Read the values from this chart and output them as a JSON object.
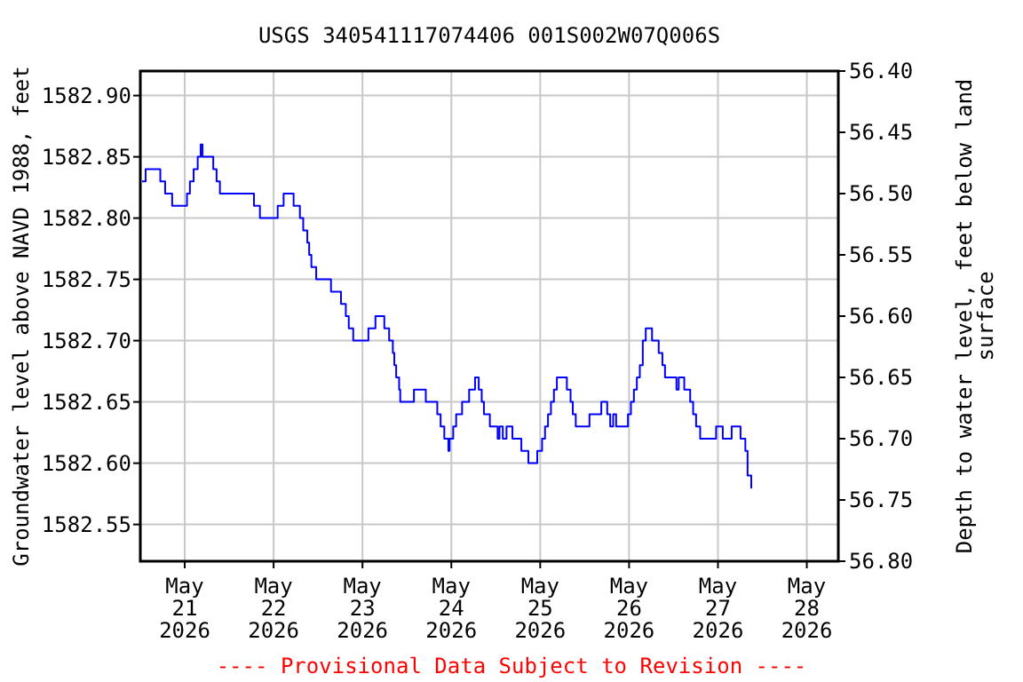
{
  "chart_data": {
    "type": "step",
    "title": "USGS 340541117074406 001S002W07Q006S",
    "xlabel": null,
    "ylabel": "Groundwater level above NAVD 1988, feet",
    "y2label": "Depth to water level, feet below land surface",
    "annotations": [
      "---- Provisional Data Subject to Revision ----"
    ],
    "grid": true,
    "marker": "none",
    "line_style": "solid",
    "xlim": [
      "2026-05-20T12:00",
      "2026-05-28T08:30"
    ],
    "xticks": [
      {
        "value": "2026-05-21",
        "label": "May\n21\n2026"
      },
      {
        "value": "2026-05-22",
        "label": "May\n22\n2026"
      },
      {
        "value": "2026-05-23",
        "label": "May\n23\n2026"
      },
      {
        "value": "2026-05-24",
        "label": "May\n24\n2026"
      },
      {
        "value": "2026-05-25",
        "label": "May\n25\n2026"
      },
      {
        "value": "2026-05-26",
        "label": "May\n26\n2026"
      },
      {
        "value": "2026-05-27",
        "label": "May\n27\n2026"
      },
      {
        "value": "2026-05-28",
        "label": "May\n28\n2026"
      }
    ],
    "ylim": [
      1582.52,
      1582.92
    ],
    "yticks": [
      {
        "value": 1582.55,
        "label": "1582.55"
      },
      {
        "value": 1582.6,
        "label": "1582.60"
      },
      {
        "value": 1582.65,
        "label": "1582.65"
      },
      {
        "value": 1582.7,
        "label": "1582.70"
      },
      {
        "value": 1582.75,
        "label": "1582.75"
      },
      {
        "value": 1582.8,
        "label": "1582.80"
      },
      {
        "value": 1582.85,
        "label": "1582.85"
      },
      {
        "value": 1582.9,
        "label": "1582.90"
      }
    ],
    "y2lim": [
      56.8,
      56.4
    ],
    "y2ticks": [
      {
        "value": 56.4,
        "label": "56.40"
      },
      {
        "value": 56.45,
        "label": "56.45"
      },
      {
        "value": 56.5,
        "label": "56.50"
      },
      {
        "value": 56.55,
        "label": "56.55"
      },
      {
        "value": 56.6,
        "label": "56.60"
      },
      {
        "value": 56.65,
        "label": "56.65"
      },
      {
        "value": 56.7,
        "label": "56.70"
      },
      {
        "value": 56.75,
        "label": "56.75"
      },
      {
        "value": 56.8,
        "label": "56.80"
      }
    ],
    "series": [
      {
        "color": "#0000ff",
        "x": [
          "2026-05-20T12:29",
          "2026-05-20T13:26",
          "2026-05-20T17:24",
          "2026-05-20T18:42",
          "2026-05-20T20:36",
          "2026-05-21T00:36",
          "2026-05-21T01:24",
          "2026-05-21T02:24",
          "2026-05-21T03:30",
          "2026-05-21T04:18",
          "2026-05-21T04:48",
          "2026-05-21T07:42",
          "2026-05-21T08:36",
          "2026-05-21T09:30",
          "2026-05-21T18:42",
          "2026-05-21T20:18",
          "2026-05-22T01:06",
          "2026-05-22T02:42",
          "2026-05-22T05:24",
          "2026-05-22T07:06",
          "2026-05-22T08:00",
          "2026-05-22T09:06",
          "2026-05-22T09:36",
          "2026-05-22T10:12",
          "2026-05-22T11:30",
          "2026-05-22T15:30",
          "2026-05-22T18:12",
          "2026-05-22T19:30",
          "2026-05-22T20:18",
          "2026-05-22T21:30",
          "2026-05-23T01:36",
          "2026-05-23T03:30",
          "2026-05-23T05:54",
          "2026-05-23T07:12",
          "2026-05-23T08:12",
          "2026-05-23T08:36",
          "2026-05-23T09:06",
          "2026-05-23T09:54",
          "2026-05-23T10:12",
          "2026-05-23T13:54",
          "2026-05-23T17:06",
          "2026-05-23T20:12",
          "2026-05-23T21:06",
          "2026-05-23T22:06",
          "2026-05-23T23:12",
          "2026-05-23T23:30",
          "2026-05-24T00:30",
          "2026-05-24T01:18",
          "2026-05-24T02:54",
          "2026-05-24T04:48",
          "2026-05-24T06:24",
          "2026-05-24T07:24",
          "2026-05-24T08:12",
          "2026-05-24T08:48",
          "2026-05-24T10:24",
          "2026-05-24T12:30",
          "2026-05-24T13:00",
          "2026-05-24T13:54",
          "2026-05-24T14:54",
          "2026-05-24T16:30",
          "2026-05-24T18:54",
          "2026-05-24T20:48",
          "2026-05-24T23:12",
          "2026-05-25T00:30",
          "2026-05-25T01:18",
          "2026-05-25T02:06",
          "2026-05-25T02:54",
          "2026-05-25T03:42",
          "2026-05-25T04:30",
          "2026-05-25T07:12",
          "2026-05-25T08:12",
          "2026-05-25T08:48",
          "2026-05-25T09:36",
          "2026-05-25T13:18",
          "2026-05-25T16:30",
          "2026-05-25T18:06",
          "2026-05-25T18:54",
          "2026-05-25T19:42",
          "2026-05-25T20:30",
          "2026-05-25T23:42",
          "2026-05-26T00:30",
          "2026-05-26T01:18",
          "2026-05-26T02:06",
          "2026-05-26T02:54",
          "2026-05-26T03:42",
          "2026-05-26T04:30",
          "2026-05-26T06:12",
          "2026-05-26T08:00",
          "2026-05-26T09:00",
          "2026-05-26T09:42",
          "2026-05-26T12:48",
          "2026-05-26T13:24",
          "2026-05-26T14:54",
          "2026-05-26T16:30",
          "2026-05-26T17:18",
          "2026-05-26T18:06",
          "2026-05-26T19:12",
          "2026-05-26T23:30",
          "2026-05-27T01:18",
          "2026-05-27T03:42",
          "2026-05-27T06:06",
          "2026-05-27T07:24",
          "2026-05-27T08:00",
          "2026-05-27T09:00",
          "2026-05-27T09:12"
        ],
        "values": [
          1582.83,
          1582.84,
          1582.83,
          1582.82,
          1582.81,
          1582.82,
          1582.83,
          1582.84,
          1582.85,
          1582.86,
          1582.85,
          1582.84,
          1582.83,
          1582.82,
          1582.81,
          1582.8,
          1582.81,
          1582.82,
          1582.81,
          1582.8,
          1582.79,
          1582.78,
          1582.77,
          1582.76,
          1582.75,
          1582.74,
          1582.73,
          1582.72,
          1582.71,
          1582.7,
          1582.71,
          1582.72,
          1582.71,
          1582.7,
          1582.69,
          1582.68,
          1582.67,
          1582.66,
          1582.65,
          1582.66,
          1582.65,
          1582.64,
          1582.63,
          1582.62,
          1582.61,
          1582.62,
          1582.63,
          1582.64,
          1582.65,
          1582.66,
          1582.67,
          1582.66,
          1582.65,
          1582.64,
          1582.63,
          1582.62,
          1582.63,
          1582.62,
          1582.63,
          1582.62,
          1582.61,
          1582.6,
          1582.61,
          1582.62,
          1582.63,
          1582.64,
          1582.65,
          1582.66,
          1582.67,
          1582.66,
          1582.65,
          1582.64,
          1582.63,
          1582.64,
          1582.65,
          1582.64,
          1582.63,
          1582.64,
          1582.63,
          1582.64,
          1582.65,
          1582.66,
          1582.67,
          1582.68,
          1582.7,
          1582.71,
          1582.7,
          1582.69,
          1582.68,
          1582.67,
          1582.66,
          1582.67,
          1582.66,
          1582.65,
          1582.64,
          1582.63,
          1582.62,
          1582.63,
          1582.62,
          1582.63,
          1582.62,
          1582.61,
          1582.59,
          1582.58,
          1582.58
        ]
      }
    ]
  }
}
